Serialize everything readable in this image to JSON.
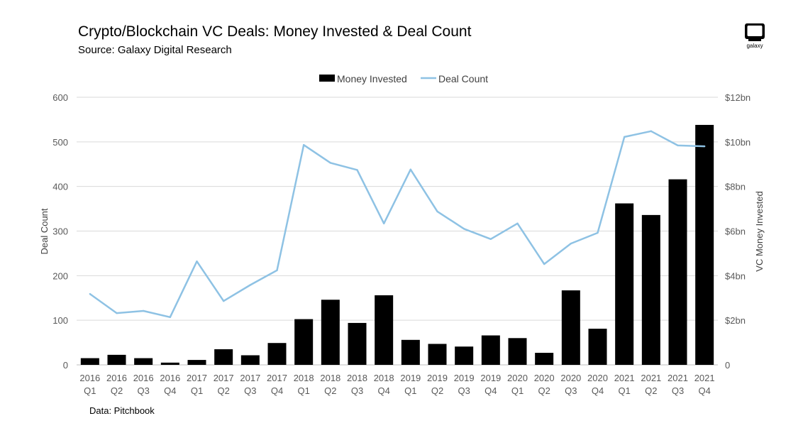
{
  "header": {
    "title": "Crypto/Blockchain VC Deals: Money Invested & Deal Count",
    "subtitle": "Source: Galaxy Digital Research",
    "logo_text": "galaxy"
  },
  "footer": {
    "note": "Data: Pitchbook"
  },
  "colors": {
    "bar": "#000000",
    "line": "#8ec2e4",
    "grid": "#d9d9d9",
    "axis_text": "#595959"
  },
  "chart_data": {
    "type": "bar",
    "legend_position": "top-center",
    "grid": true,
    "categories": [
      [
        "2016",
        "Q1"
      ],
      [
        "2016",
        "Q2"
      ],
      [
        "2016",
        "Q3"
      ],
      [
        "2016",
        "Q4"
      ],
      [
        "2017",
        "Q1"
      ],
      [
        "2017",
        "Q2"
      ],
      [
        "2017",
        "Q3"
      ],
      [
        "2017",
        "Q4"
      ],
      [
        "2018",
        "Q1"
      ],
      [
        "2018",
        "Q2"
      ],
      [
        "2018",
        "Q3"
      ],
      [
        "2018",
        "Q4"
      ],
      [
        "2019",
        "Q1"
      ],
      [
        "2019",
        "Q2"
      ],
      [
        "2019",
        "Q3"
      ],
      [
        "2019",
        "Q4"
      ],
      [
        "2020",
        "Q1"
      ],
      [
        "2020",
        "Q2"
      ],
      [
        "2020",
        "Q3"
      ],
      [
        "2020",
        "Q4"
      ],
      [
        "2021",
        "Q1"
      ],
      [
        "2021",
        "Q2"
      ],
      [
        "2021",
        "Q3"
      ],
      [
        "2021",
        "Q4"
      ]
    ],
    "series": [
      {
        "name": "Money Invested",
        "type": "bar",
        "axis": "right",
        "unit": "bn",
        "values": [
          0.3,
          0.45,
          0.3,
          0.1,
          0.22,
          0.7,
          0.43,
          0.98,
          2.05,
          2.92,
          1.88,
          3.12,
          1.12,
          0.94,
          0.82,
          1.32,
          1.2,
          0.54,
          3.34,
          1.62,
          7.24,
          6.72,
          8.32,
          10.76
        ]
      },
      {
        "name": "Deal Count",
        "type": "line",
        "axis": "left",
        "values": [
          159,
          116,
          121,
          107,
          232,
          143,
          179,
          212,
          493,
          453,
          437,
          317,
          438,
          344,
          305,
          282,
          317,
          226,
          272,
          296,
          511,
          524,
          492,
          490
        ]
      }
    ],
    "y_left": {
      "label": "Deal Count",
      "range": [
        0,
        600
      ],
      "ticks": [
        "0",
        "100",
        "200",
        "300",
        "400",
        "500",
        "600"
      ]
    },
    "y_right": {
      "label": "VC Money Invested",
      "range": [
        0,
        12
      ],
      "ticks": [
        "0",
        "$2bn",
        "$4bn",
        "$6bn",
        "$8bn",
        "$10bn",
        "$12bn"
      ]
    }
  }
}
